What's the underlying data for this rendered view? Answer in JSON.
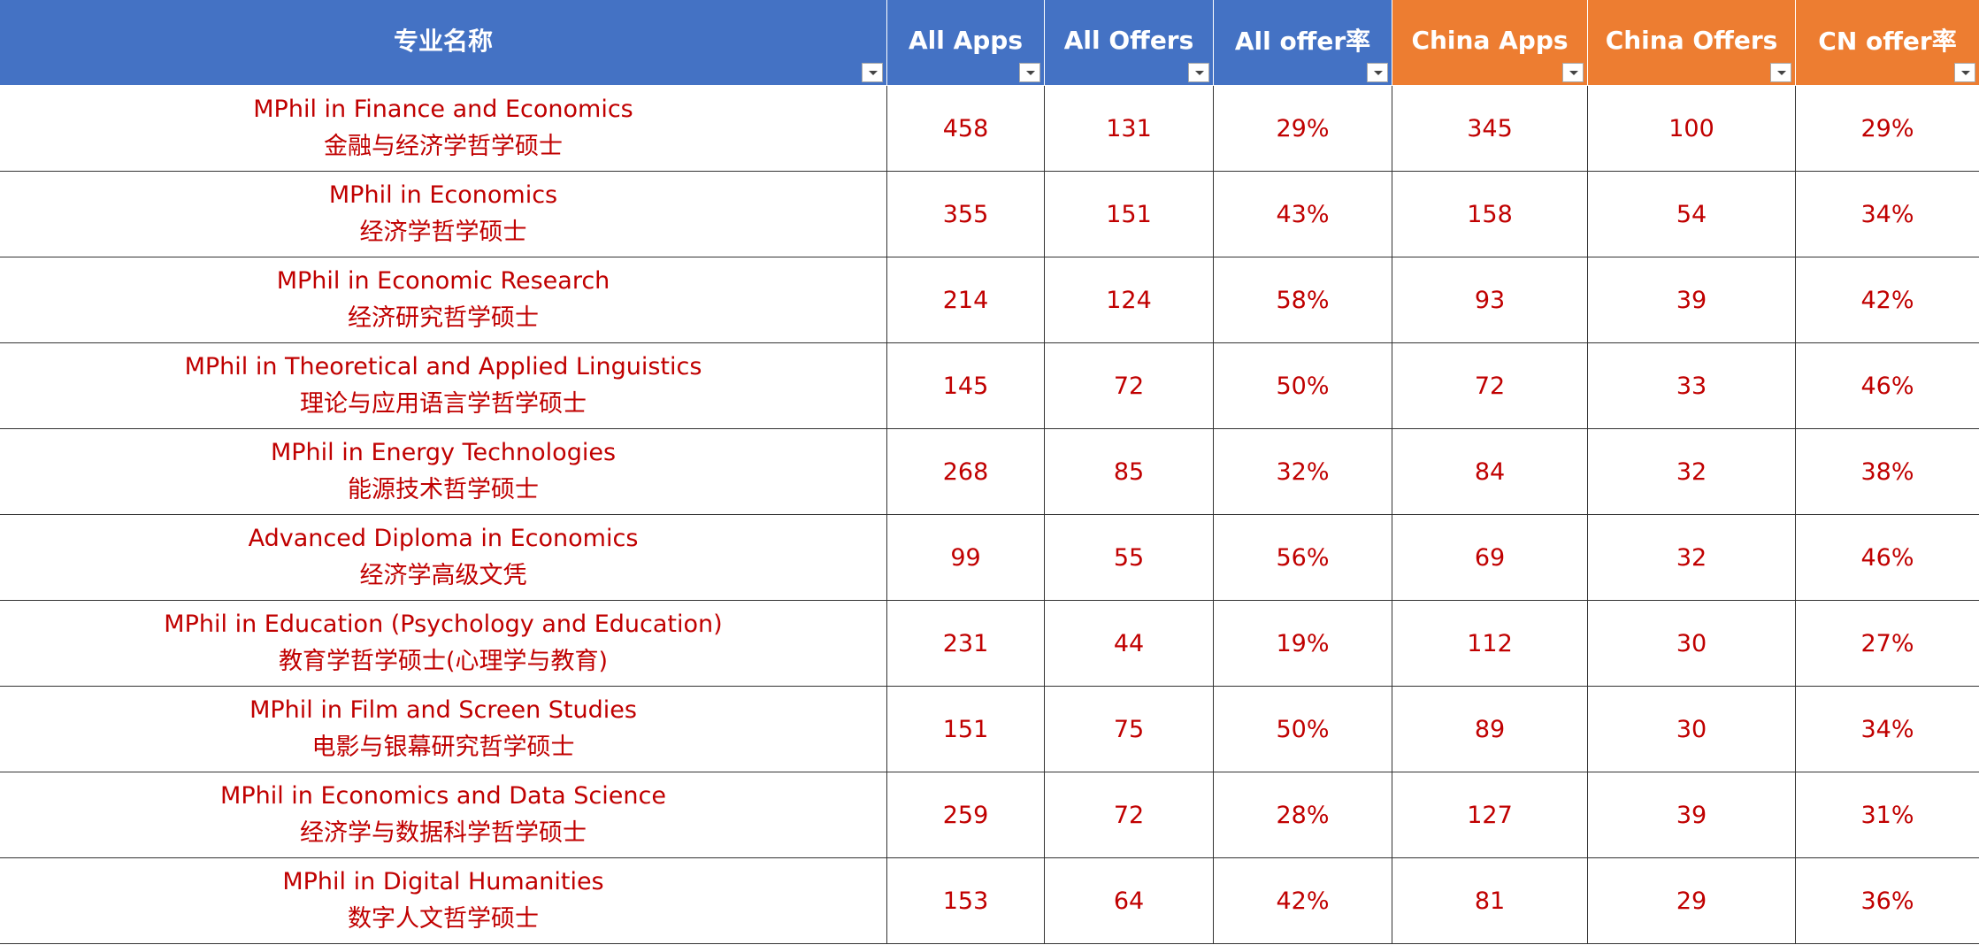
{
  "table": {
    "header": [
      "专业名称",
      "All Apps",
      "All Offers",
      "All offer率",
      "China Apps",
      "China Offers",
      "CN offer率"
    ],
    "rows": [
      {
        "program": "MPhil in Finance and Economics",
        "program_cn": "金融与经济学哲学硕士",
        "cells": [
          458,
          131,
          "29%",
          345,
          100,
          "29%"
        ]
      },
      {
        "program": "MPhil in Economics",
        "program_cn": "经济学哲学硕士",
        "cells": [
          355,
          151,
          "43%",
          158,
          54,
          "34%"
        ]
      },
      {
        "program": "MPhil in Economic Research",
        "program_cn": "经济研究哲学硕士",
        "cells": [
          214,
          124,
          "58%",
          93,
          39,
          "42%"
        ]
      },
      {
        "program": "MPhil in Theoretical and Applied Linguistics",
        "program_cn": "理论与应用语言学哲学硕士",
        "cells": [
          145,
          72,
          "50%",
          72,
          33,
          "46%"
        ]
      },
      {
        "program": "MPhil in Energy Technologies",
        "program_cn": "能源技术哲学硕士",
        "cells": [
          268,
          85,
          "32%",
          84,
          32,
          "38%"
        ]
      },
      {
        "program": "Advanced Diploma in Economics",
        "program_cn": "经济学高级文凭",
        "cells": [
          99,
          55,
          "56%",
          69,
          32,
          "46%"
        ]
      },
      {
        "program": "MPhil in Education (Psychology and Education)",
        "program_cn": "教育学哲学硕士(心理学与教育)",
        "cells": [
          231,
          44,
          "19%",
          112,
          30,
          "27%"
        ]
      },
      {
        "program": "MPhil in Film and Screen Studies",
        "program_cn": "电影与银幕研究哲学硕士",
        "cells": [
          151,
          75,
          "50%",
          89,
          30,
          "34%"
        ]
      },
      {
        "program": "MPhil in Economics and Data Science",
        "program_cn": "经济学与数据科学哲学硕士",
        "cells": [
          259,
          72,
          "28%",
          127,
          39,
          "31%"
        ]
      },
      {
        "program": "MPhil in Digital Humanities",
        "program_cn": "数字人文哲学硕士",
        "cells": [
          153,
          64,
          "42%",
          81,
          29,
          "36%"
        ]
      }
    ]
  }
}
